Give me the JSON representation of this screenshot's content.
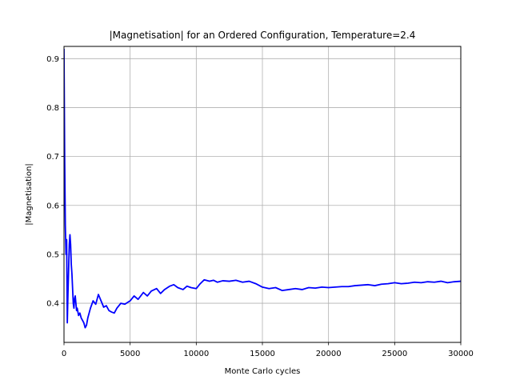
{
  "chart_data": {
    "type": "line",
    "title": "|Magnetisation| for an Ordered Configuration, Temperature=2.4",
    "xlabel": "Monte Carlo cycles",
    "ylabel": "|Magnetisation|",
    "xlim": [
      0,
      30000
    ],
    "ylim": [
      0.32,
      0.925
    ],
    "xticks": [
      0,
      5000,
      10000,
      15000,
      20000,
      25000,
      30000
    ],
    "xtick_labels": [
      "0",
      "5000",
      "10000",
      "15000",
      "20000",
      "25000",
      "30000"
    ],
    "yticks": [
      0.4,
      0.5,
      0.6,
      0.7,
      0.8,
      0.9
    ],
    "ytick_labels": [
      "0.4",
      "0.5",
      "0.6",
      "0.7",
      "0.8",
      "0.9"
    ],
    "grid": true,
    "series": [
      {
        "color": "#0000ff",
        "x": [
          0,
          50,
          100,
          150,
          200,
          250,
          300,
          350,
          400,
          450,
          500,
          550,
          600,
          650,
          700,
          750,
          800,
          850,
          900,
          950,
          1000,
          1100,
          1200,
          1300,
          1400,
          1500,
          1600,
          1700,
          1800,
          1900,
          2000,
          2200,
          2400,
          2600,
          2800,
          3000,
          3200,
          3400,
          3600,
          3800,
          4000,
          4300,
          4600,
          5000,
          5300,
          5600,
          6000,
          6300,
          6600,
          7000,
          7300,
          7600,
          8000,
          8300,
          8600,
          9000,
          9300,
          9600,
          10000,
          10300,
          10600,
          11000,
          11300,
          11600,
          12000,
          12500,
          13000,
          13500,
          14000,
          14500,
          15000,
          15500,
          16000,
          16500,
          17000,
          17500,
          18000,
          18500,
          19000,
          19500,
          20000,
          20500,
          21000,
          21500,
          22000,
          22500,
          23000,
          23500,
          24000,
          24500,
          25000,
          25500,
          26000,
          26500,
          27000,
          27500,
          28000,
          28500,
          29000,
          29500,
          30000
        ],
        "y": [
          0.92,
          0.7,
          0.56,
          0.5,
          0.53,
          0.36,
          0.42,
          0.47,
          0.52,
          0.54,
          0.52,
          0.48,
          0.46,
          0.43,
          0.4,
          0.39,
          0.41,
          0.415,
          0.4,
          0.385,
          0.39,
          0.375,
          0.38,
          0.37,
          0.365,
          0.36,
          0.35,
          0.355,
          0.37,
          0.38,
          0.39,
          0.405,
          0.398,
          0.418,
          0.405,
          0.392,
          0.395,
          0.385,
          0.382,
          0.38,
          0.39,
          0.4,
          0.398,
          0.405,
          0.415,
          0.408,
          0.422,
          0.415,
          0.425,
          0.43,
          0.42,
          0.428,
          0.435,
          0.438,
          0.432,
          0.428,
          0.435,
          0.432,
          0.43,
          0.44,
          0.448,
          0.445,
          0.447,
          0.443,
          0.446,
          0.445,
          0.447,
          0.443,
          0.445,
          0.44,
          0.433,
          0.43,
          0.432,
          0.426,
          0.428,
          0.43,
          0.428,
          0.432,
          0.431,
          0.433,
          0.432,
          0.433,
          0.434,
          0.434,
          0.436,
          0.437,
          0.438,
          0.436,
          0.439,
          0.44,
          0.442,
          0.44,
          0.441,
          0.443,
          0.442,
          0.444,
          0.443,
          0.445,
          0.442,
          0.444,
          0.445
        ]
      }
    ]
  }
}
